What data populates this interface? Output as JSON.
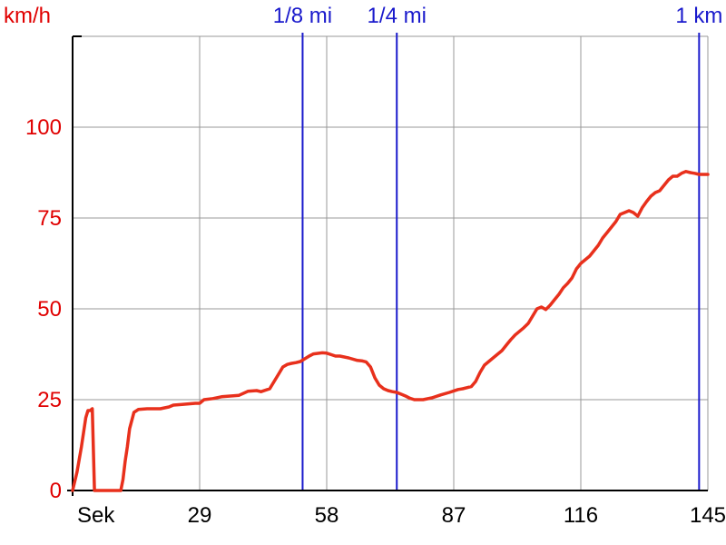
{
  "chart_data": {
    "type": "line",
    "ylabel": "km/h",
    "xlabel": "Sek",
    "xlim": [
      0,
      145
    ],
    "ylim": [
      0,
      125
    ],
    "x_ticks": [
      29,
      58,
      87,
      116,
      145
    ],
    "y_ticks": [
      0,
      25,
      50,
      75,
      100
    ],
    "grid": true,
    "colors": {
      "line": "#e8301c",
      "y_axis_text": "#e00000",
      "markers": "#1a1acc",
      "grid": "#999999",
      "axes": "#000000"
    },
    "markers": [
      {
        "label": "1/8 mi",
        "x": 52.5
      },
      {
        "label": "1/4 mi",
        "x": 74
      },
      {
        "label": "1 km",
        "x": 143
      }
    ],
    "series": [
      {
        "x": [
          0,
          1,
          2,
          2.5,
          3,
          3.5,
          4,
          4.5,
          5,
          6,
          8,
          11,
          11.5,
          12,
          12.5,
          13,
          14,
          15,
          17,
          20,
          22,
          23,
          24,
          25,
          28,
          29,
          30,
          32,
          34,
          36,
          38,
          40,
          42,
          43,
          45,
          47,
          48,
          49,
          50,
          51,
          52,
          54,
          55,
          57,
          58,
          59,
          60,
          61,
          63,
          65,
          66,
          67,
          68,
          69,
          70,
          71,
          72,
          73,
          74,
          75,
          76,
          77,
          78,
          80,
          82,
          84,
          86,
          88,
          89,
          90,
          91,
          92,
          93,
          94,
          95,
          96,
          98,
          99,
          100,
          101,
          102,
          103,
          104,
          106,
          107,
          108,
          109,
          110,
          111,
          112,
          113,
          114,
          115,
          116,
          118,
          120,
          121,
          122,
          123,
          124,
          125,
          126,
          127,
          128,
          129,
          130,
          131,
          132,
          133,
          134,
          136,
          137,
          138,
          139,
          140,
          141,
          142,
          143,
          144,
          145
        ],
        "y": [
          0,
          5,
          12,
          16,
          20,
          22,
          22,
          22.5,
          0,
          0,
          0,
          0,
          3,
          8,
          12,
          17,
          21.5,
          22.3,
          22.5,
          22.5,
          23,
          23.5,
          23.6,
          23.7,
          24,
          24,
          25,
          25.3,
          25.8,
          26,
          26.2,
          27.3,
          27.5,
          27.2,
          28,
          32,
          34,
          34.7,
          35,
          35.2,
          35.5,
          37,
          37.6,
          37.9,
          37.8,
          37.4,
          37,
          37,
          36.5,
          35.8,
          35.7,
          35.4,
          34,
          31,
          29,
          28,
          27.5,
          27.2,
          27,
          26.5,
          26,
          25.4,
          25,
          25,
          25.5,
          26.3,
          27,
          27.8,
          28,
          28.3,
          28.6,
          30,
          32.5,
          34.5,
          35.5,
          36.5,
          38.5,
          40,
          41.5,
          42.8,
          43.8,
          44.8,
          46,
          50,
          50.5,
          49.8,
          51,
          52.5,
          54,
          55.8,
          57,
          58.5,
          61,
          62.5,
          64.5,
          67.5,
          69.5,
          71,
          72.5,
          74,
          76,
          76.5,
          77,
          76.5,
          75.5,
          77.8,
          79.5,
          81,
          82,
          82.5,
          85.5,
          86.5,
          86.5,
          87.3,
          87.8,
          87.5,
          87.3,
          87,
          87,
          87
        ]
      }
    ]
  }
}
